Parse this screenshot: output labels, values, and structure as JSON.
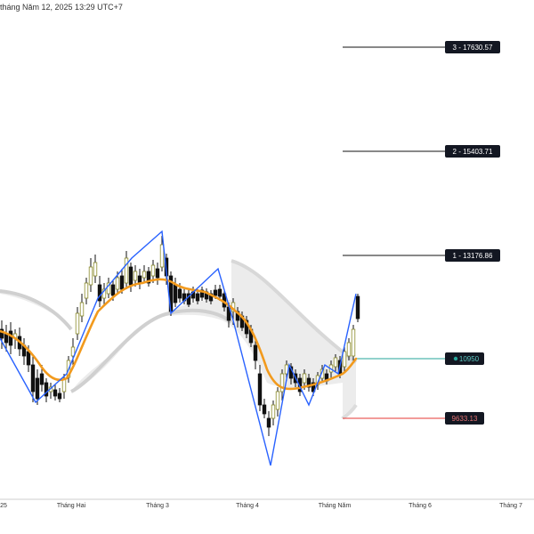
{
  "header": {
    "datetime": "tháng Năm 12, 2025 13:29 UTC+7"
  },
  "chart_data": {
    "type": "candlestick",
    "time_labels": [
      "25",
      "Tháng Hai",
      "Tháng 3",
      "Tháng 4",
      "Tháng Năm",
      "Tháng 6",
      "Tháng 7"
    ],
    "current_price": "10950",
    "levels": [
      {
        "label": "3 - 17630.57",
        "value": 17630.57
      },
      {
        "label": "2 - 15403.71",
        "value": 15403.71
      },
      {
        "label": "1 - 13176.86",
        "value": 13176.86
      }
    ],
    "stop_label": "9633.13",
    "colors": {
      "up": "#ffffff",
      "down": "#111111",
      "ma": "#f29a1d",
      "zigzag": "#2962ff",
      "current": "#26a69a",
      "stop": "#e53935",
      "band": "#d8d8d8"
    }
  },
  "icons": {
    "current_price_marker": "dot-icon"
  }
}
